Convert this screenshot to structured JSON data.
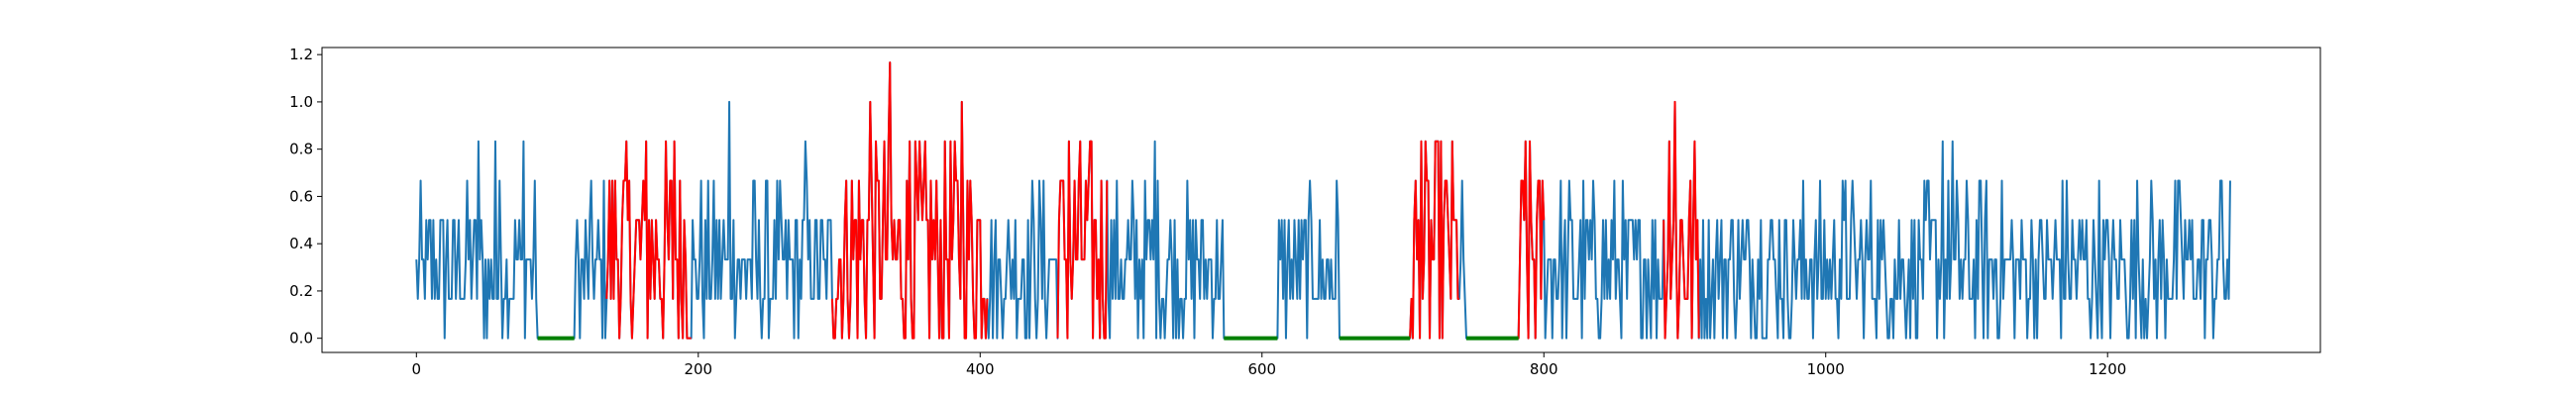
{
  "chart_data": {
    "type": "line",
    "title": "",
    "xlabel": "",
    "ylabel": "",
    "xlim": [
      -67,
      1351
    ],
    "ylim": [
      -0.06,
      1.23
    ],
    "grid": false,
    "legend": "none",
    "x_ticks": [
      0,
      200,
      400,
      600,
      800,
      1000,
      1200
    ],
    "y_ticks": [
      0.0,
      0.2,
      0.4,
      0.6,
      0.8,
      1.0,
      1.2
    ],
    "x_tick_labels": [
      "0",
      "200",
      "400",
      "600",
      "800",
      "1000",
      "1200"
    ],
    "y_tick_labels": [
      "0.0",
      "0.2",
      "0.4",
      "0.6",
      "0.8",
      "1.0",
      "1.2"
    ],
    "colors": {
      "signal": "#1f77b4",
      "anomaly": "#ff0000",
      "flat": "#008000"
    },
    "n_points": 1288,
    "y_levels": [
      0,
      0.1667,
      0.3333,
      0.5,
      0.6667,
      0.8333,
      1.0
    ],
    "anomaly_ranges": [
      [
        135,
        195
      ],
      [
        295,
        405
      ],
      [
        455,
        490
      ],
      [
        705,
        740
      ],
      [
        780,
        800
      ],
      [
        885,
        910
      ]
    ],
    "flat_ranges": [
      [
        86,
        112
      ],
      [
        573,
        611
      ],
      [
        655,
        705
      ],
      [
        745,
        782
      ]
    ],
    "peaks": [
      {
        "x": 44,
        "y": 0.8333
      },
      {
        "x": 56,
        "y": 0.8333
      },
      {
        "x": 76,
        "y": 0.8333
      },
      {
        "x": 163,
        "y": 0.8333
      },
      {
        "x": 183,
        "y": 0.8333
      },
      {
        "x": 222,
        "y": 1.0
      },
      {
        "x": 276,
        "y": 0.8333
      },
      {
        "x": 322,
        "y": 1.0
      },
      {
        "x": 336,
        "y": 1.1667
      },
      {
        "x": 350,
        "y": 0.8333
      },
      {
        "x": 387,
        "y": 1.0
      },
      {
        "x": 463,
        "y": 0.8333
      },
      {
        "x": 524,
        "y": 0.8333
      },
      {
        "x": 610,
        "y": 0.8333
      },
      {
        "x": 713,
        "y": 0.8333
      },
      {
        "x": 755,
        "y": 0.8333
      },
      {
        "x": 787,
        "y": 0.8333
      },
      {
        "x": 889,
        "y": 0.8333
      },
      {
        "x": 893,
        "y": 1.0
      },
      {
        "x": 1083,
        "y": 0.8333
      },
      {
        "x": 1090,
        "y": 0.8333
      },
      {
        "x": 1281,
        "y": 0.6667
      }
    ]
  }
}
